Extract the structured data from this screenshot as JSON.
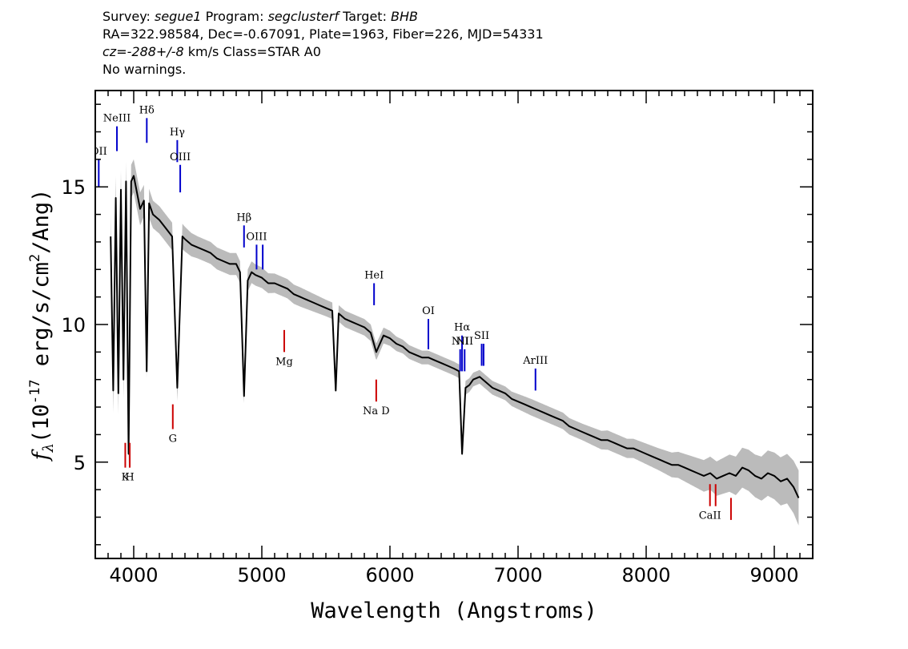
{
  "header": {
    "survey_label": "Survey:",
    "survey": "segue1",
    "program_label": "Program:",
    "program": "segclusterf",
    "target_label": "Target:",
    "target": "BHB",
    "coords": "RA=322.98584, Dec=-0.67091, Plate=1963, Fiber=226, MJD=54331",
    "cz_label": "cz=",
    "cz_value": "-288+/-8",
    "cz_units": "km/s",
    "class_text": "Class=STAR A0",
    "warnings": "No warnings."
  },
  "chart_data": {
    "type": "line",
    "xlabel": "Wavelength (Angstroms)",
    "ylabel": "f_λ (10^-17 erg/s/cm^2/Ang)",
    "ylabel_parts": {
      "prefix": "(10",
      "exp1": "-17",
      "mid": " erg/s/cm",
      "exp2": "2",
      "suffix": "/Ang)"
    },
    "xlim": [
      3700,
      9300
    ],
    "ylim": [
      1.5,
      18.5
    ],
    "x_ticks": [
      4000,
      5000,
      6000,
      7000,
      8000,
      9000
    ],
    "y_ticks": [
      5,
      10,
      15
    ],
    "colors": {
      "spectrum": "#000000",
      "noise": "#bbbbbb",
      "emission": "#0000cc",
      "absorption": "#cc0000"
    },
    "series": [
      {
        "kind": "flux",
        "x": [
          3820,
          3840,
          3860,
          3880,
          3900,
          3920,
          3940,
          3960,
          3980,
          4000,
          4050,
          4080,
          4101,
          4120,
          4150,
          4200,
          4250,
          4300,
          4340,
          4380,
          4400,
          4450,
          4500,
          4550,
          4600,
          4650,
          4700,
          4750,
          4800,
          4830,
          4861,
          4890,
          4920,
          4950,
          5000,
          5050,
          5100,
          5150,
          5200,
          5250,
          5300,
          5350,
          5400,
          5450,
          5500,
          5550,
          5577,
          5600,
          5650,
          5700,
          5750,
          5800,
          5850,
          5893,
          5950,
          6000,
          6050,
          6100,
          6150,
          6200,
          6250,
          6300,
          6350,
          6400,
          6450,
          6500,
          6540,
          6563,
          6590,
          6620,
          6650,
          6700,
          6750,
          6800,
          6850,
          6900,
          6950,
          7000,
          7050,
          7100,
          7150,
          7200,
          7250,
          7300,
          7350,
          7400,
          7450,
          7500,
          7550,
          7600,
          7650,
          7700,
          7750,
          7800,
          7850,
          7900,
          7950,
          8000,
          8050,
          8100,
          8150,
          8200,
          8250,
          8300,
          8350,
          8400,
          8450,
          8500,
          8550,
          8600,
          8650,
          8700,
          8750,
          8800,
          8850,
          8900,
          8950,
          9000,
          9050,
          9100,
          9150,
          9190
        ],
        "y": [
          13.2,
          7.6,
          14.6,
          7.5,
          14.9,
          8.0,
          15.2,
          5.3,
          15.2,
          15.4,
          14.2,
          14.5,
          8.3,
          14.4,
          14.0,
          13.8,
          13.5,
          13.2,
          7.7,
          13.2,
          13.1,
          12.9,
          12.8,
          12.7,
          12.6,
          12.4,
          12.3,
          12.2,
          12.2,
          11.9,
          7.4,
          11.6,
          11.9,
          11.8,
          11.7,
          11.5,
          11.5,
          11.4,
          11.3,
          11.1,
          11.0,
          10.9,
          10.8,
          10.7,
          10.6,
          10.5,
          7.6,
          10.4,
          10.2,
          10.1,
          10.0,
          9.9,
          9.7,
          9.0,
          9.6,
          9.5,
          9.3,
          9.2,
          9.0,
          8.9,
          8.8,
          8.8,
          8.7,
          8.6,
          8.5,
          8.4,
          8.3,
          5.3,
          7.7,
          7.8,
          8.0,
          8.1,
          7.9,
          7.7,
          7.6,
          7.5,
          7.3,
          7.2,
          7.1,
          7.0,
          6.9,
          6.8,
          6.7,
          6.6,
          6.5,
          6.3,
          6.2,
          6.1,
          6.0,
          5.9,
          5.8,
          5.8,
          5.7,
          5.6,
          5.5,
          5.5,
          5.4,
          5.3,
          5.2,
          5.1,
          5.0,
          4.9,
          4.9,
          4.8,
          4.7,
          4.6,
          4.5,
          4.6,
          4.4,
          4.5,
          4.6,
          4.5,
          4.8,
          4.7,
          4.5,
          4.4,
          4.6,
          4.5,
          4.3,
          4.4,
          4.1,
          3.7
        ]
      },
      {
        "kind": "noise",
        "x": [
          3820,
          3860,
          3900,
          3940,
          3980,
          4050,
          4150,
          4300,
          4500,
          4700,
          4900,
          5100,
          5300,
          5500,
          5700,
          5900,
          6100,
          6300,
          6500,
          6700,
          6900,
          7100,
          7300,
          7500,
          7700,
          7900,
          8100,
          8300,
          8500,
          8700,
          8900,
          9100,
          9190
        ],
        "y": [
          0.8,
          0.8,
          0.7,
          0.7,
          0.6,
          0.6,
          0.5,
          0.5,
          0.4,
          0.4,
          0.4,
          0.35,
          0.35,
          0.3,
          0.3,
          0.3,
          0.25,
          0.25,
          0.25,
          0.25,
          0.25,
          0.3,
          0.3,
          0.3,
          0.35,
          0.35,
          0.4,
          0.5,
          0.6,
          0.7,
          0.8,
          0.9,
          1.0
        ]
      }
    ],
    "emission_lines": [
      {
        "label": "OII",
        "x": 3727,
        "y1": 15.0,
        "y2": 16.0
      },
      {
        "label": "NeIII",
        "x": 3869,
        "y1": 16.3,
        "y2": 17.2
      },
      {
        "label": "Hδ",
        "x": 4102,
        "y1": 16.6,
        "y2": 17.5
      },
      {
        "label": "Hγ",
        "x": 4340,
        "y1": 15.9,
        "y2": 16.7
      },
      {
        "label": "OIII",
        "x": 4363,
        "y1": 14.8,
        "y2": 15.8
      },
      {
        "label": "Hβ",
        "x": 4861,
        "y1": 12.8,
        "y2": 13.6
      },
      {
        "label": "OIII",
        "x": 4959,
        "y1": 12.0,
        "y2": 12.9
      },
      {
        "label": "",
        "x": 5007,
        "y1": 12.0,
        "y2": 12.9
      },
      {
        "label": "HeI",
        "x": 5876,
        "y1": 10.7,
        "y2": 11.5
      },
      {
        "label": "OI",
        "x": 6300,
        "y1": 9.1,
        "y2": 10.2
      },
      {
        "label": "NII",
        "x": 6548,
        "y1": 8.3,
        "y2": 9.1
      },
      {
        "label": "Hα",
        "x": 6563,
        "y1": 8.3,
        "y2": 9.6
      },
      {
        "label": "NII",
        "x": 6583,
        "y1": 8.3,
        "y2": 9.1
      },
      {
        "label": "SII",
        "x": 6716,
        "y1": 8.5,
        "y2": 9.3
      },
      {
        "label": "",
        "x": 6731,
        "y1": 8.5,
        "y2": 9.3
      },
      {
        "label": "ArIII",
        "x": 7136,
        "y1": 7.6,
        "y2": 8.4
      }
    ],
    "absorption_lines": [
      {
        "label": "K",
        "x": 3934,
        "y1": 4.8,
        "y2": 5.7
      },
      {
        "label": "H",
        "x": 3969,
        "y1": 4.8,
        "y2": 5.7
      },
      {
        "label": "G",
        "x": 4305,
        "y1": 6.2,
        "y2": 7.1
      },
      {
        "label": "Mg",
        "x": 5175,
        "y1": 9.0,
        "y2": 9.8
      },
      {
        "label": "Na D",
        "x": 5893,
        "y1": 7.2,
        "y2": 8.0
      },
      {
        "label": "CaII",
        "x": 8498,
        "y1": 3.4,
        "y2": 4.2
      },
      {
        "label": "",
        "x": 8542,
        "y1": 3.4,
        "y2": 4.2
      },
      {
        "label": "",
        "x": 8662,
        "y1": 2.9,
        "y2": 3.7
      }
    ]
  }
}
